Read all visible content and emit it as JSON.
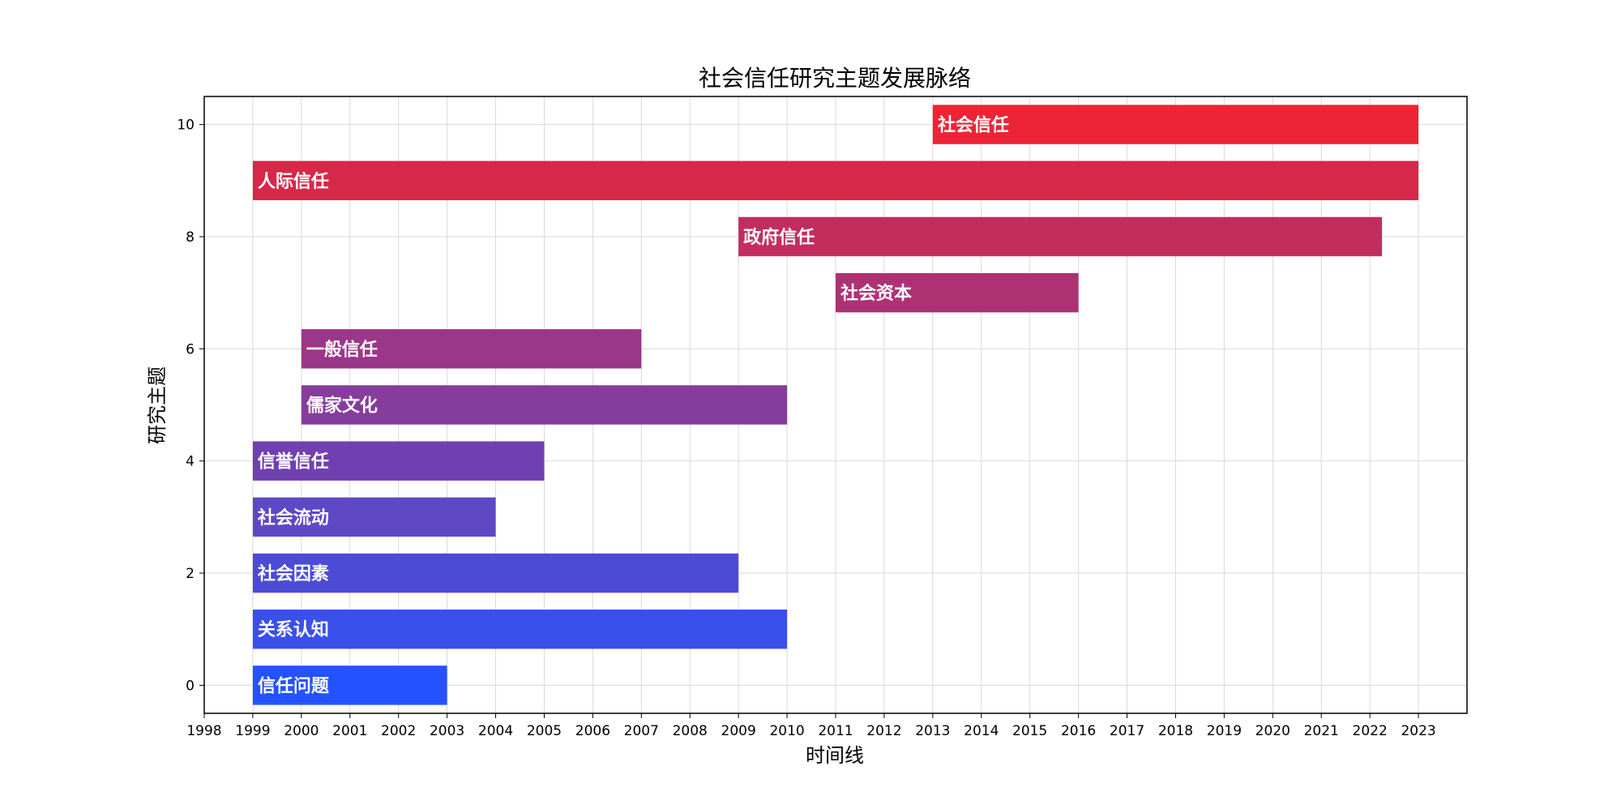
{
  "chart_data": {
    "type": "bar",
    "orientation": "horizontal",
    "title": "社会信任研究主题发展脉络",
    "xlabel": "时间线",
    "ylabel": "研究主题",
    "xlim": [
      1998,
      2024
    ],
    "ylim": [
      -0.5,
      10.5
    ],
    "xticks": [
      "1998",
      "1999",
      "2000",
      "2001",
      "2002",
      "2003",
      "2004",
      "2005",
      "2006",
      "2007",
      "2008",
      "2009",
      "2010",
      "2011",
      "2012",
      "2013",
      "2014",
      "2015",
      "2016",
      "2017",
      "2018",
      "2019",
      "2020",
      "2021",
      "2022",
      "2023"
    ],
    "yticks": [
      "0",
      "2",
      "4",
      "6",
      "8",
      "10"
    ],
    "grid": true,
    "series": [
      {
        "name": "信任问题",
        "y": 0,
        "start": 1999,
        "end": 2003,
        "color": "#2452ff"
      },
      {
        "name": "关系认知",
        "y": 1,
        "start": 1999,
        "end": 2010,
        "color": "#3a50ea"
      },
      {
        "name": "社会因素",
        "y": 2,
        "start": 1999,
        "end": 2009,
        "color": "#4c4bd6"
      },
      {
        "name": "社会流动",
        "y": 3,
        "start": 1999,
        "end": 2004,
        "color": "#5e48c4"
      },
      {
        "name": "信誉信任",
        "y": 4,
        "start": 1999,
        "end": 2005,
        "color": "#7040b0"
      },
      {
        "name": "儒家文化",
        "y": 5,
        "start": 2000,
        "end": 2010,
        "color": "#863c9c"
      },
      {
        "name": "一般信任",
        "y": 6,
        "start": 2000,
        "end": 2007,
        "color": "#9b3788"
      },
      {
        "name": "社会资本",
        "y": 7,
        "start": 2011,
        "end": 2016,
        "color": "#ae3174"
      },
      {
        "name": "政府信任",
        "y": 8,
        "start": 2009,
        "end": 2022.25,
        "color": "#c32d5e"
      },
      {
        "name": "人际信任",
        "y": 9,
        "start": 1999,
        "end": 2023,
        "color": "#d62848"
      },
      {
        "name": "社会信任",
        "y": 10,
        "start": 2013,
        "end": 2023,
        "color": "#ec2436"
      }
    ]
  }
}
